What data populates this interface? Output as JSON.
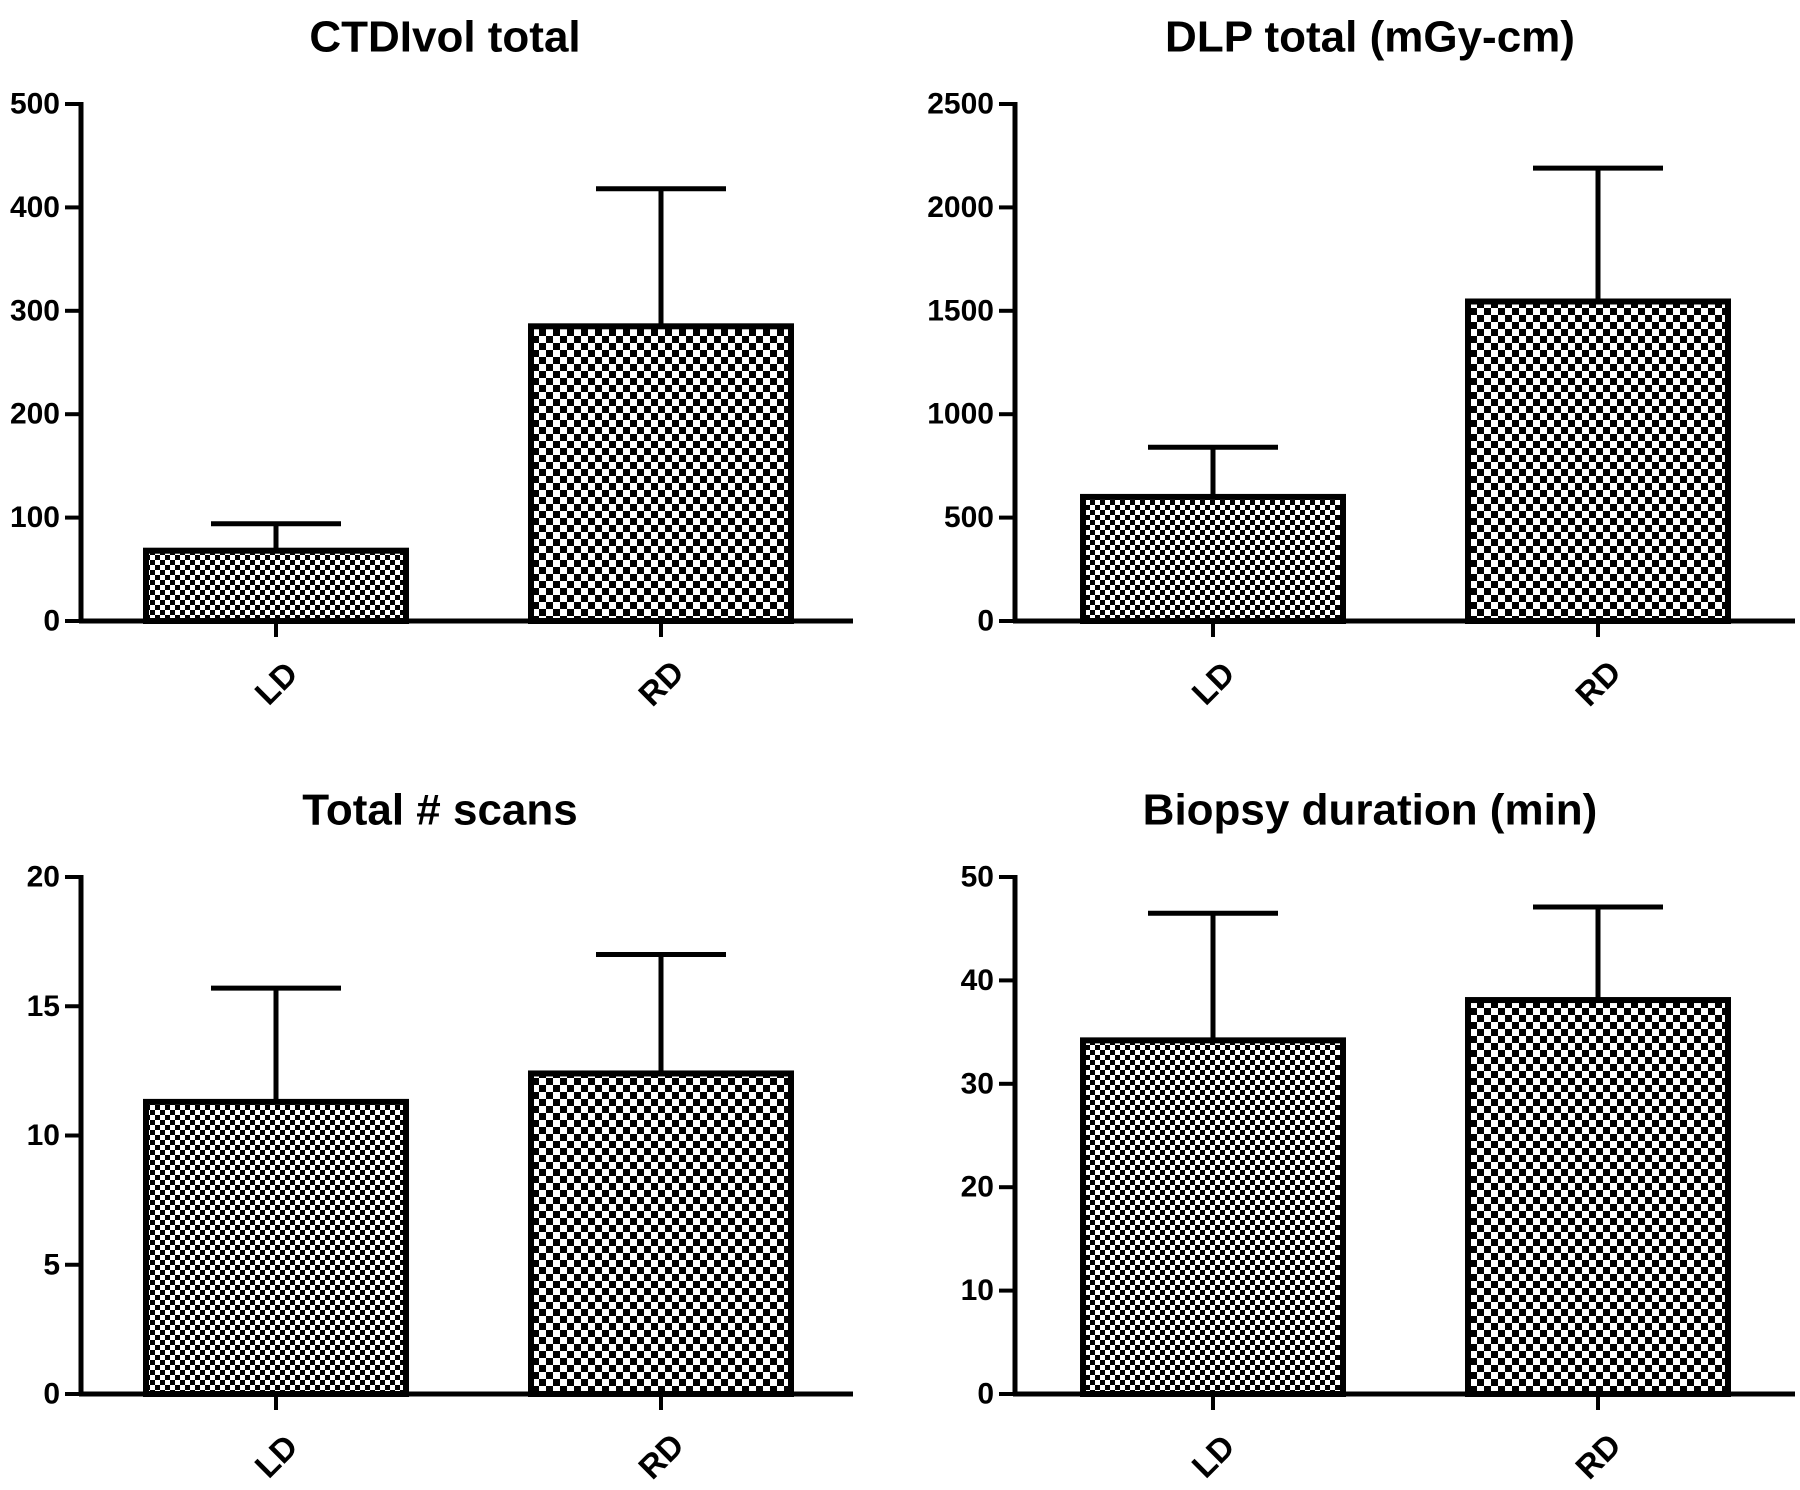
{
  "chart_data": [
    {
      "type": "bar",
      "title": "CTDIvol total",
      "categories": [
        "LD",
        "RD"
      ],
      "values": [
        68,
        285
      ],
      "error_upper": [
        94,
        418
      ],
      "ylim": [
        0,
        500
      ],
      "yticks": [
        0,
        100,
        200,
        300,
        400,
        500
      ],
      "grid": false
    },
    {
      "type": "bar",
      "title": "DLP total (mGy-cm)",
      "categories": [
        "LD",
        "RD"
      ],
      "values": [
        600,
        1545
      ],
      "error_upper": [
        840,
        2190
      ],
      "ylim": [
        0,
        2500
      ],
      "yticks": [
        0,
        500,
        1000,
        1500,
        2000,
        2500
      ],
      "grid": false
    },
    {
      "type": "bar",
      "title": "Total # scans",
      "categories": [
        "LD",
        "RD"
      ],
      "values": [
        11.3,
        12.4
      ],
      "error_upper": [
        15.7,
        17.0
      ],
      "ylim": [
        0,
        20
      ],
      "yticks": [
        0,
        5,
        10,
        15,
        20
      ],
      "grid": false
    },
    {
      "type": "bar",
      "title": "Biopsy duration (min)",
      "categories": [
        "LD",
        "RD"
      ],
      "values": [
        34.2,
        38.1
      ],
      "error_upper": [
        46.5,
        47.1
      ],
      "ylim": [
        0,
        50
      ],
      "yticks": [
        0,
        10,
        20,
        30,
        40,
        50
      ],
      "grid": false
    }
  ],
  "colors": {
    "ink": "#000000",
    "background": "#ffffff"
  }
}
